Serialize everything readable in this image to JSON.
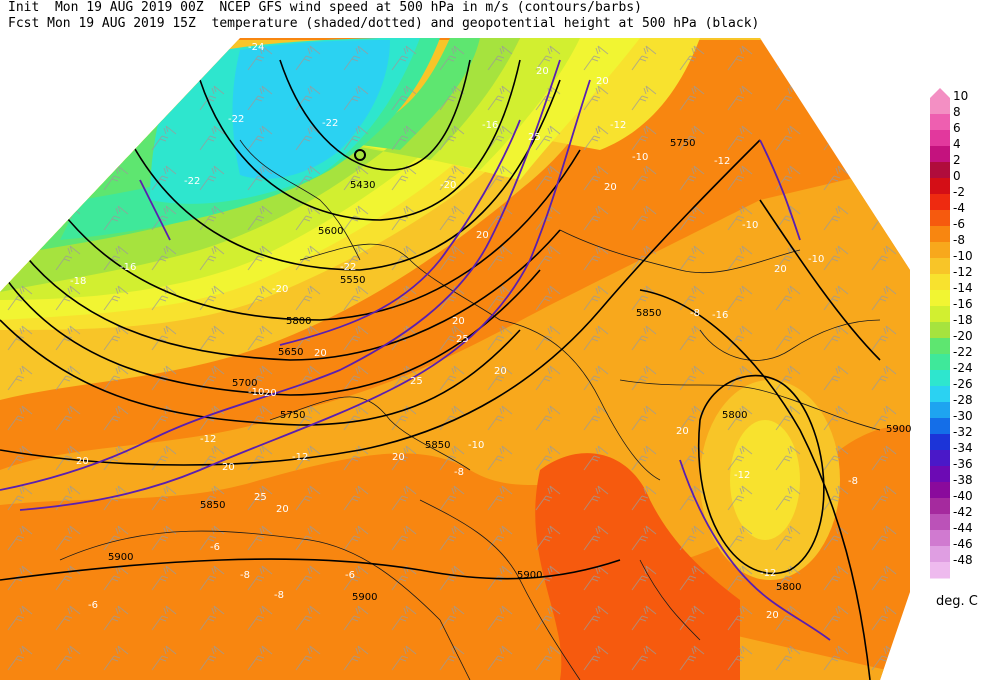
{
  "header": {
    "line1": "Init  Mon 19 AUG 2019 00Z  NCEP GFS wind speed at 500 hPa in m/s (contours/barbs)",
    "line2": "Fcst Mon 19 AUG 2019 15Z  temperature (shaded/dotted) and geopotential height at 500 hPa (black)"
  },
  "colorbar": {
    "units": "deg. C",
    "labels": [
      "10",
      "8",
      "6",
      "4",
      "2",
      "0",
      "-2",
      "-4",
      "-6",
      "-8",
      "-10",
      "-12",
      "-14",
      "-16",
      "-18",
      "-20",
      "-22",
      "-24",
      "-26",
      "-28",
      "-30",
      "-32",
      "-34",
      "-36",
      "-38",
      "-40",
      "-42",
      "-44",
      "-46",
      "-48"
    ],
    "colors": [
      "#f38fc3",
      "#ee5fb0",
      "#e2389d",
      "#c4127e",
      "#b00c3c",
      "#d40e16",
      "#ee2a10",
      "#f65a0e",
      "#f88610",
      "#f8a81c",
      "#f8c528",
      "#f8e22e",
      "#f1f532",
      "#d2ef30",
      "#a6e33e",
      "#5ee670",
      "#3fe89a",
      "#2ee6ce",
      "#2bd2f2",
      "#1ea4f0",
      "#146ee8",
      "#1c34d8",
      "#4a18c8",
      "#6c0ab4",
      "#8a0a9c",
      "#a52a9e",
      "#bb52b8",
      "#d07ad0",
      "#df9ee2",
      "#eebaee"
    ]
  },
  "map": {
    "height_labels": [
      "5430",
      "5600",
      "5550",
      "5800",
      "5650",
      "5700",
      "5750",
      "5850",
      "5900",
      "5850",
      "5900",
      "5750",
      "5800",
      "5850",
      "5800",
      "5900",
      "5900"
    ],
    "temp_labels": [
      "-24",
      "-22",
      "-22",
      "-22",
      "-20",
      "-18",
      "-16",
      "-22",
      "-20",
      "-16",
      "-12",
      "-10",
      "-12",
      "-12",
      "-12",
      "-10",
      "-8",
      "-10",
      "-8",
      "-12",
      "-10",
      "-12",
      "-8",
      "-6",
      "-6",
      "-8",
      "-6",
      "-8",
      "-10",
      "-16"
    ],
    "wind_labels": [
      "20",
      "25",
      "20",
      "20",
      "25",
      "20",
      "20",
      "20",
      "25",
      "20",
      "20",
      "20",
      "25",
      "20",
      "20",
      "20",
      "20",
      "20",
      "20"
    ]
  },
  "colors": {
    "height_contour": "#000000",
    "wind_contour": "#5a1fb0",
    "border": "#1a1a1a",
    "barb": "#9a9a9a"
  }
}
